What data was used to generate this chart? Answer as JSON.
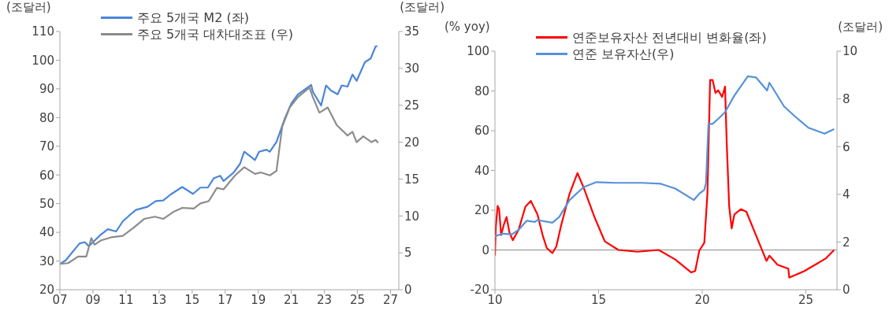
{
  "chart_data": [
    {
      "type": "line",
      "ylabel": "(조달러)",
      "y2label": "(조달러)",
      "legend": "top left",
      "xlim": [
        2007,
        2027.5
      ],
      "xticks": [
        {
          "value": 2007,
          "label": "07"
        },
        {
          "value": 2009,
          "label": "09"
        },
        {
          "value": 2011,
          "label": "11"
        },
        {
          "value": 2013,
          "label": "13"
        },
        {
          "value": 2015,
          "label": "15"
        },
        {
          "value": 2017,
          "label": "17"
        },
        {
          "value": 2019,
          "label": "19"
        },
        {
          "value": 2021,
          "label": "21"
        },
        {
          "value": 2023,
          "label": "23"
        },
        {
          "value": 2025,
          "label": "25"
        },
        {
          "value": 2027,
          "label": "27"
        }
      ],
      "ylim": [
        20,
        110
      ],
      "yticks": [
        20,
        30,
        40,
        50,
        60,
        70,
        80,
        90,
        100,
        110
      ],
      "y2lim": [
        0,
        35
      ],
      "y2ticks": [
        0,
        5,
        10,
        15,
        20,
        25,
        30,
        35
      ],
      "series": [
        {
          "name": "주요 5개국 M2 (좌)",
          "color": "#4a86d8",
          "x": [
            2007.0,
            2007.36,
            2008.18,
            2008.5,
            2008.75,
            2009.4,
            2009.9,
            2010.4,
            2010.8,
            2011.3,
            2011.6,
            2012.3,
            2012.8,
            2013.25,
            2013.7,
            2014.4,
            2015.05,
            2015.5,
            2015.95,
            2016.3,
            2016.7,
            2016.9,
            2017.5,
            2017.9,
            2018.15,
            2018.6,
            2018.8,
            2019.05,
            2019.5,
            2019.7,
            2020.1,
            2020.6,
            2021.0,
            2021.4,
            2022.2,
            2022.3,
            2022.8,
            2023.1,
            2023.4,
            2023.8,
            2024.05,
            2024.4,
            2024.7,
            2024.95,
            2025.45,
            2025.8,
            2026.1,
            2026.2
          ],
          "values": [
            29.0,
            30.3,
            36.1,
            36.6,
            35.2,
            38.8,
            41.1,
            40.3,
            43.8,
            46.4,
            47.8,
            48.9,
            50.9,
            51.1,
            53.2,
            55.8,
            53.4,
            55.6,
            55.6,
            58.8,
            59.7,
            57.9,
            60.8,
            63.9,
            68.1,
            66.1,
            65.2,
            68.1,
            68.8,
            68.1,
            71.5,
            79.6,
            84.9,
            88.1,
            91.4,
            89.0,
            84.2,
            91.2,
            89.4,
            88.1,
            91.2,
            90.8,
            95.0,
            92.8,
            99.3,
            100.6,
            104.8,
            104.9
          ]
        },
        {
          "name": "주요 5개국 대차대조표 (우)",
          "color": "#8c8c8c",
          "axis": "y2",
          "x": [
            2007.0,
            2007.5,
            2008.1,
            2008.6,
            2008.9,
            2009.1,
            2009.5,
            2010.1,
            2010.8,
            2011.45,
            2012.1,
            2012.75,
            2013.25,
            2013.9,
            2014.4,
            2015.1,
            2015.5,
            2016.0,
            2016.5,
            2016.9,
            2017.6,
            2018.15,
            2018.8,
            2019.15,
            2019.7,
            2020.1,
            2020.45,
            2020.9,
            2021.4,
            2022.1,
            2022.3,
            2022.7,
            2023.2,
            2023.75,
            2024.4,
            2024.7,
            2024.95,
            2025.35,
            2025.85,
            2026.1,
            2026.25
          ],
          "values": [
            3.5,
            3.6,
            4.5,
            4.5,
            7.0,
            6.1,
            6.7,
            7.1,
            7.3,
            8.4,
            9.6,
            9.9,
            9.6,
            10.6,
            11.1,
            11.0,
            11.7,
            12.0,
            13.8,
            13.6,
            15.5,
            16.6,
            15.7,
            15.9,
            15.5,
            16.1,
            22.1,
            24.7,
            26.1,
            27.4,
            26.1,
            24.0,
            24.7,
            22.3,
            20.9,
            21.4,
            20.0,
            20.8,
            20.0,
            20.3,
            19.9
          ]
        }
      ]
    },
    {
      "type": "line",
      "ylabel": "(% yoy)",
      "y2label": "(조달러)",
      "legend": "top left",
      "xlim": [
        2010,
        2026.5
      ],
      "xticks": [
        {
          "value": 2010,
          "label": "10"
        },
        {
          "value": 2015,
          "label": "15"
        },
        {
          "value": 2020,
          "label": "20"
        },
        {
          "value": 2025,
          "label": "25"
        }
      ],
      "ylim": [
        -20,
        100
      ],
      "yticks": [
        -20,
        0,
        20,
        40,
        60,
        80,
        100
      ],
      "y2lim": [
        0,
        10
      ],
      "y2ticks": [
        0,
        2,
        4,
        6,
        8,
        10
      ],
      "ref_lines": [
        {
          "axis": "y",
          "value": 0,
          "color": "#a6a6a6"
        }
      ],
      "series": [
        {
          "name": "연준보유자산 전년대비 변화율(좌)",
          "color": "#ff0000",
          "x": [
            2010.0,
            2010.04,
            2010.13,
            2010.2,
            2010.3,
            2010.43,
            2010.56,
            2010.7,
            2010.86,
            2011.14,
            2011.47,
            2011.73,
            2012.05,
            2012.3,
            2012.5,
            2012.77,
            2012.96,
            2013.2,
            2013.6,
            2013.98,
            2014.27,
            2014.8,
            2015.3,
            2015.96,
            2016.87,
            2017.9,
            2018.7,
            2019.47,
            2019.66,
            2019.86,
            2020.1,
            2020.25,
            2020.38,
            2020.5,
            2020.64,
            2020.77,
            2020.96,
            2021.1,
            2021.18,
            2021.3,
            2021.42,
            2021.55,
            2021.87,
            2022.13,
            2022.59,
            2023.1,
            2023.24,
            2023.63,
            2024.15,
            2024.2,
            2024.93,
            2025.45,
            2025.97,
            2026.36
          ],
          "values": [
            -2.9,
            11.4,
            22.1,
            20.5,
            7.5,
            12.7,
            16.6,
            8.8,
            4.9,
            10.1,
            21.8,
            24.7,
            17.9,
            7.5,
            1.0,
            -1.6,
            1.7,
            12.7,
            28.3,
            38.7,
            31.6,
            16.6,
            4.3,
            0,
            -0.9,
            0,
            -4.8,
            -11.3,
            -10.6,
            -0.3,
            3.6,
            28.3,
            85.5,
            85.5,
            79.0,
            80.3,
            77.0,
            82.2,
            54.3,
            21.8,
            10.8,
            17.9,
            20.5,
            19.2,
            7.5,
            -5.5,
            -2.9,
            -7.4,
            -9.4,
            -13.9,
            -10.6,
            -7.4,
            -4.2,
            0
          ]
        },
        {
          "name": "연준 보유자산(우)",
          "color": "#5592d9",
          "axis": "y2",
          "x": [
            2010.0,
            2010.36,
            2010.82,
            2011.14,
            2011.53,
            2011.92,
            2012.05,
            2012.77,
            2013.1,
            2013.6,
            2014.27,
            2014.9,
            2015.8,
            2017.1,
            2018.0,
            2018.7,
            2019.6,
            2019.86,
            2020.1,
            2020.18,
            2020.3,
            2020.5,
            2020.77,
            2021.1,
            2021.55,
            2022.2,
            2022.59,
            2023.13,
            2023.24,
            2023.95,
            2024.47,
            2025.12,
            2025.9,
            2026.36
          ],
          "values": [
            2.24,
            2.35,
            2.32,
            2.51,
            2.89,
            2.84,
            2.92,
            2.81,
            3.05,
            3.76,
            4.3,
            4.51,
            4.48,
            4.48,
            4.44,
            4.24,
            3.76,
            4.03,
            4.19,
            4.46,
            6.95,
            6.95,
            7.16,
            7.44,
            8.14,
            8.95,
            8.9,
            8.35,
            8.68,
            7.68,
            7.27,
            6.79,
            6.54,
            6.73
          ]
        }
      ]
    }
  ]
}
